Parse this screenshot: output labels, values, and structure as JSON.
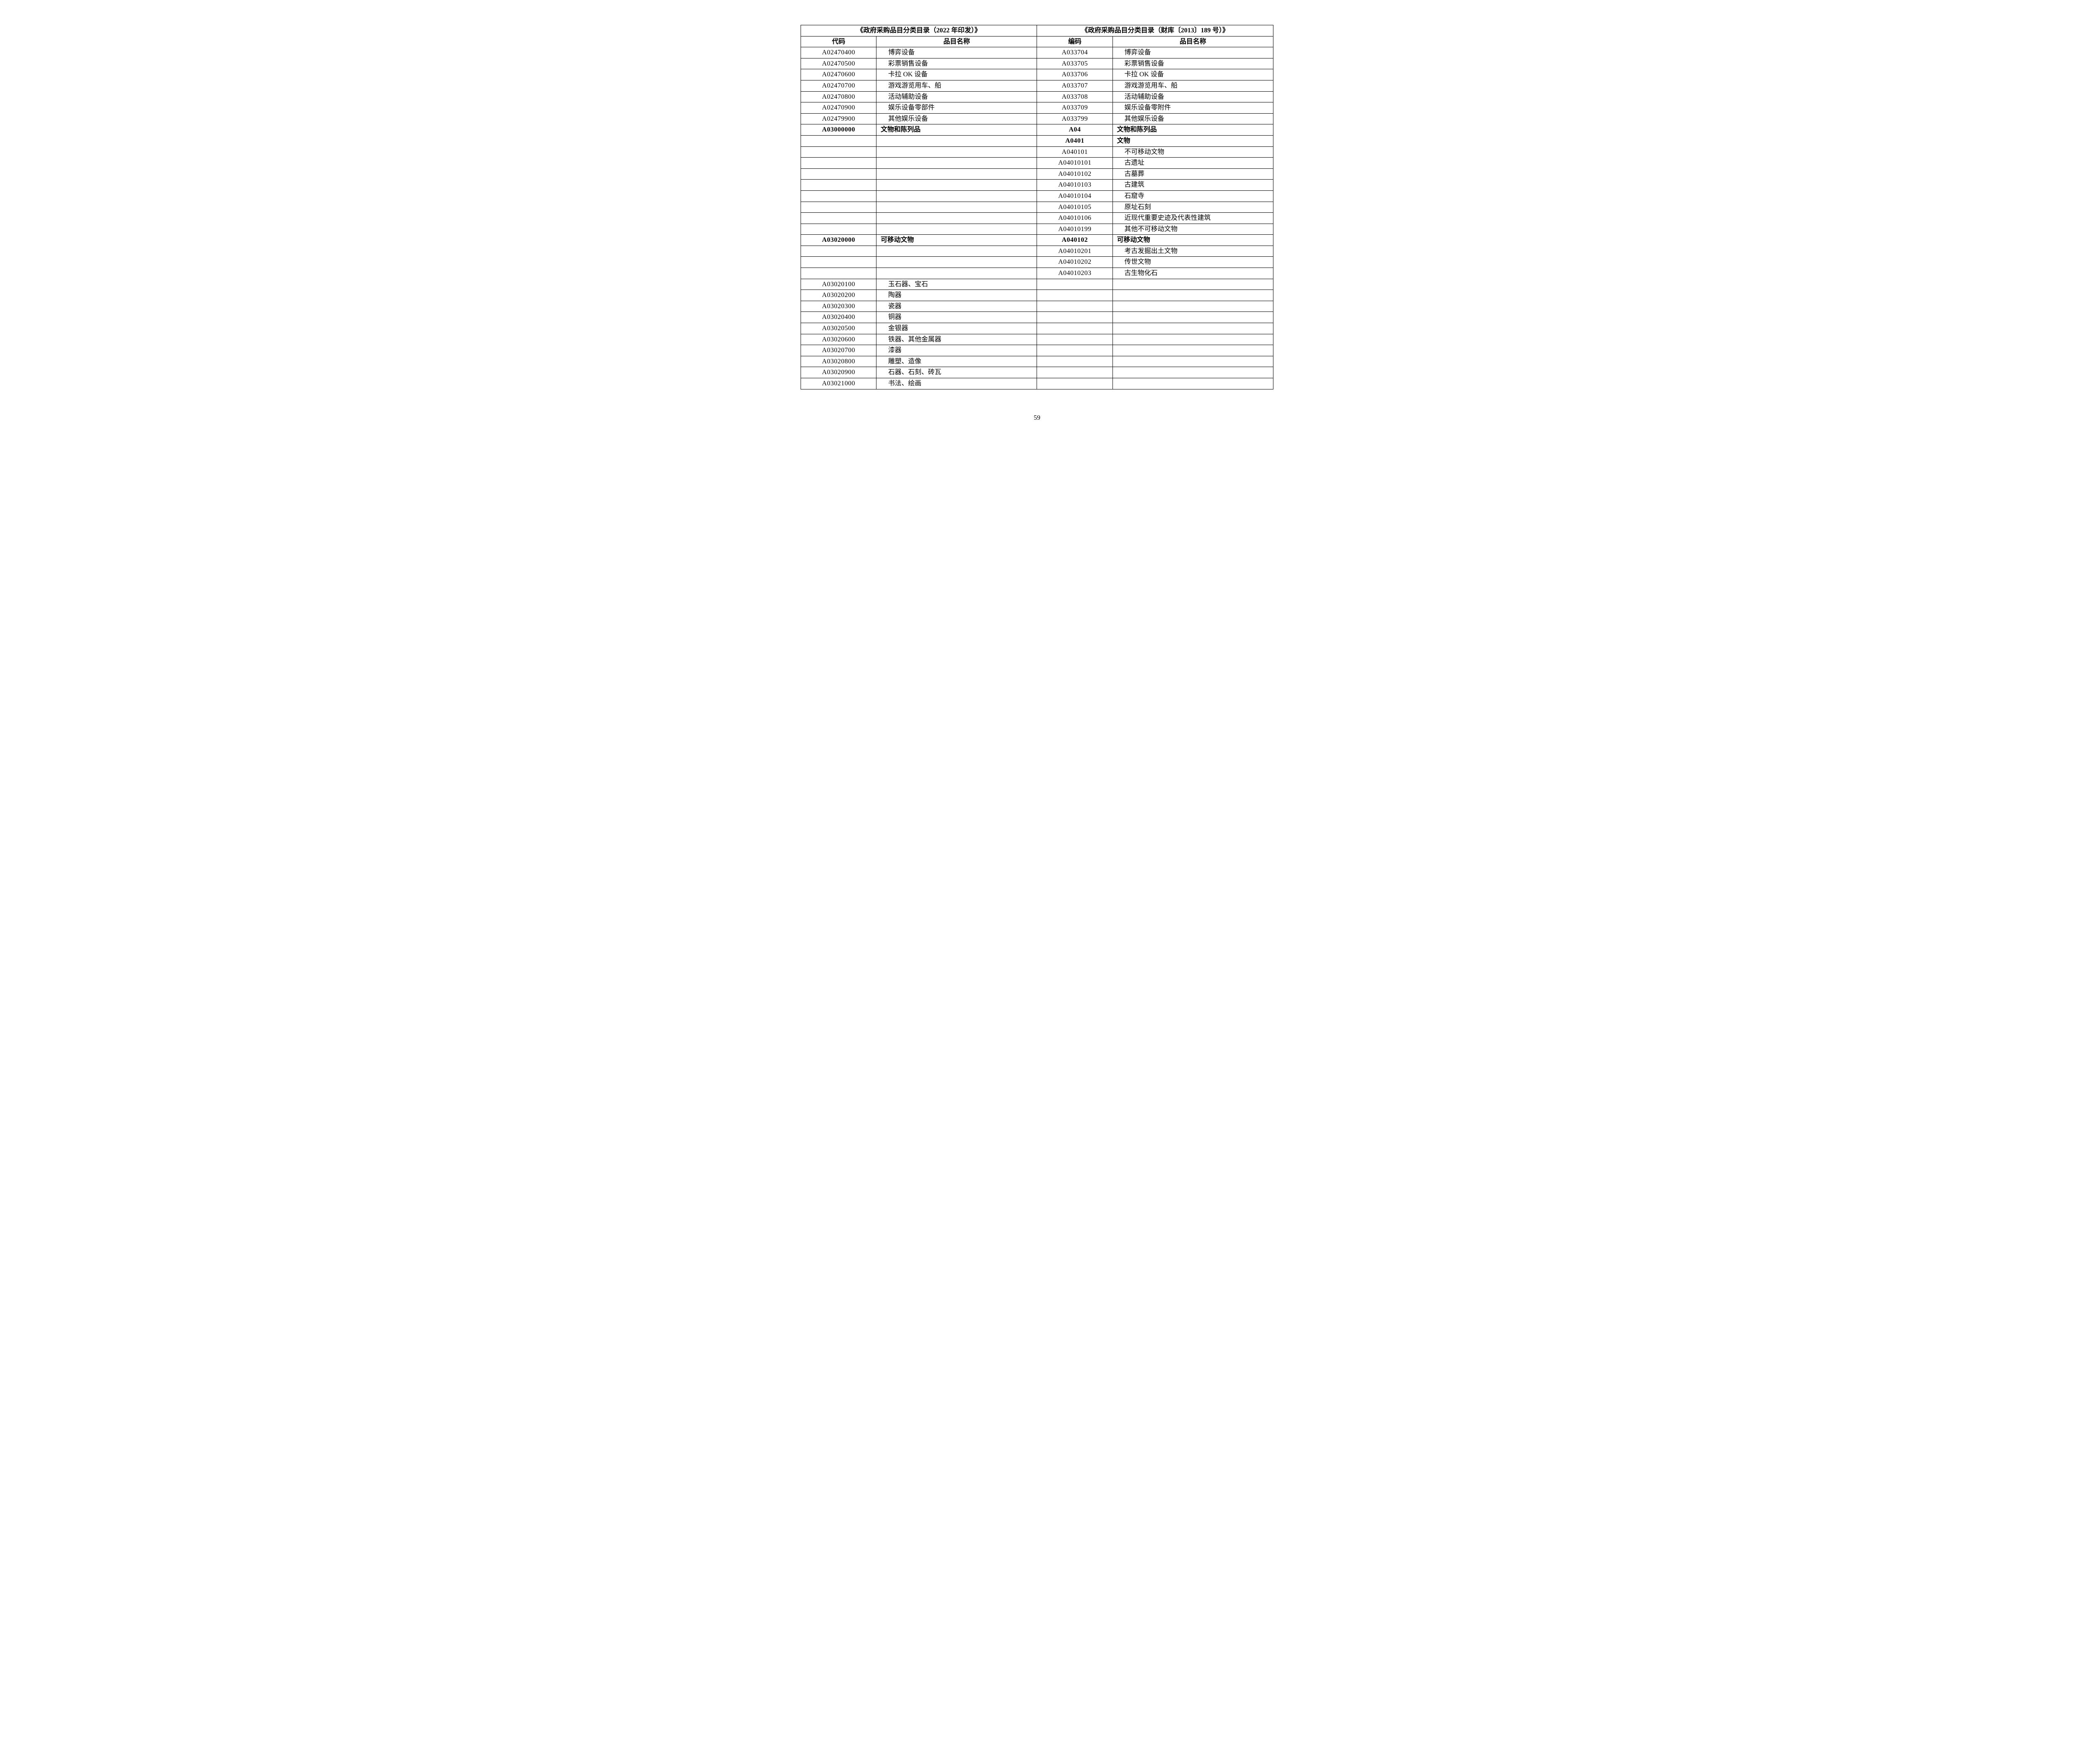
{
  "table": {
    "type": "table",
    "border_color": "#000000",
    "background_color": "#ffffff",
    "text_color": "#000000",
    "header_fontsize": 16,
    "body_fontsize": 16,
    "font_family_code": "Times New Roman",
    "font_family_text": "SimSun",
    "column_widths_pct": [
      16,
      34,
      16,
      34
    ],
    "group_headers": [
      "《政府采购品目分类目录（2022 年印发）》",
      "《政府采购品目分类目录（财库〔2013〕189 号）》"
    ],
    "sub_headers": [
      "代码",
      "品目名称",
      "编码",
      "品目名称"
    ],
    "rows": [
      {
        "c1": "A02470400",
        "n1": "博弈设备",
        "c2": "A033704",
        "n2": "博弈设备",
        "bold": false
      },
      {
        "c1": "A02470500",
        "n1": "彩票销售设备",
        "c2": "A033705",
        "n2": "彩票销售设备",
        "bold": false
      },
      {
        "c1": "A02470600",
        "n1": "卡拉 OK 设备",
        "c2": "A033706",
        "n2": "卡拉 OK 设备",
        "bold": false
      },
      {
        "c1": "A02470700",
        "n1": "游戏游览用车、船",
        "c2": "A033707",
        "n2": "游戏游览用车、船",
        "bold": false
      },
      {
        "c1": "A02470800",
        "n1": "活动辅助设备",
        "c2": "A033708",
        "n2": "活动辅助设备",
        "bold": false
      },
      {
        "c1": "A02470900",
        "n1": "娱乐设备零部件",
        "c2": "A033709",
        "n2": "娱乐设备零附件",
        "bold": false
      },
      {
        "c1": "A02479900",
        "n1": "其他娱乐设备",
        "c2": "A033799",
        "n2": "其他娱乐设备",
        "bold": false
      },
      {
        "c1": "A03000000",
        "n1": "文物和陈列品",
        "c2": "A04",
        "n2": "文物和陈列品",
        "bold": true
      },
      {
        "c1": "",
        "n1": "",
        "c2": "A0401",
        "n2": "文物",
        "bold": true
      },
      {
        "c1": "",
        "n1": "",
        "c2": "A040101",
        "n2": "不可移动文物",
        "bold": false
      },
      {
        "c1": "",
        "n1": "",
        "c2": "A04010101",
        "n2": "古遗址",
        "bold": false
      },
      {
        "c1": "",
        "n1": "",
        "c2": "A04010102",
        "n2": "古墓葬",
        "bold": false
      },
      {
        "c1": "",
        "n1": "",
        "c2": "A04010103",
        "n2": "古建筑",
        "bold": false
      },
      {
        "c1": "",
        "n1": "",
        "c2": "A04010104",
        "n2": "石窟寺",
        "bold": false
      },
      {
        "c1": "",
        "n1": "",
        "c2": "A04010105",
        "n2": "原址石刻",
        "bold": false
      },
      {
        "c1": "",
        "n1": "",
        "c2": "A04010106",
        "n2": "近现代重要史迹及代表性建筑",
        "bold": false
      },
      {
        "c1": "",
        "n1": "",
        "c2": "A04010199",
        "n2": "其他不可移动文物",
        "bold": false
      },
      {
        "c1": "A03020000",
        "n1": "可移动文物",
        "c2": "A040102",
        "n2": "可移动文物",
        "bold": true
      },
      {
        "c1": "",
        "n1": "",
        "c2": "A04010201",
        "n2": "考古发掘出土文物",
        "bold": false
      },
      {
        "c1": "",
        "n1": "",
        "c2": "A04010202",
        "n2": "传世文物",
        "bold": false
      },
      {
        "c1": "",
        "n1": "",
        "c2": "A04010203",
        "n2": "古生物化石",
        "bold": false
      },
      {
        "c1": "A03020100",
        "n1": "玉石器、宝石",
        "c2": "",
        "n2": "",
        "bold": false
      },
      {
        "c1": "A03020200",
        "n1": "陶器",
        "c2": "",
        "n2": "",
        "bold": false
      },
      {
        "c1": "A03020300",
        "n1": "瓷器",
        "c2": "",
        "n2": "",
        "bold": false
      },
      {
        "c1": "A03020400",
        "n1": "铜器",
        "c2": "",
        "n2": "",
        "bold": false
      },
      {
        "c1": "A03020500",
        "n1": "金银器",
        "c2": "",
        "n2": "",
        "bold": false
      },
      {
        "c1": "A03020600",
        "n1": "铁器、其他金属器",
        "c2": "",
        "n2": "",
        "bold": false
      },
      {
        "c1": "A03020700",
        "n1": "漆器",
        "c2": "",
        "n2": "",
        "bold": false
      },
      {
        "c1": "A03020800",
        "n1": "雕塑、造像",
        "c2": "",
        "n2": "",
        "bold": false
      },
      {
        "c1": "A03020900",
        "n1": "石器、石刻、砖瓦",
        "c2": "",
        "n2": "",
        "bold": false
      },
      {
        "c1": "A03021000",
        "n1": "书法、绘画",
        "c2": "",
        "n2": "",
        "bold": false
      }
    ]
  },
  "page_number": "59"
}
